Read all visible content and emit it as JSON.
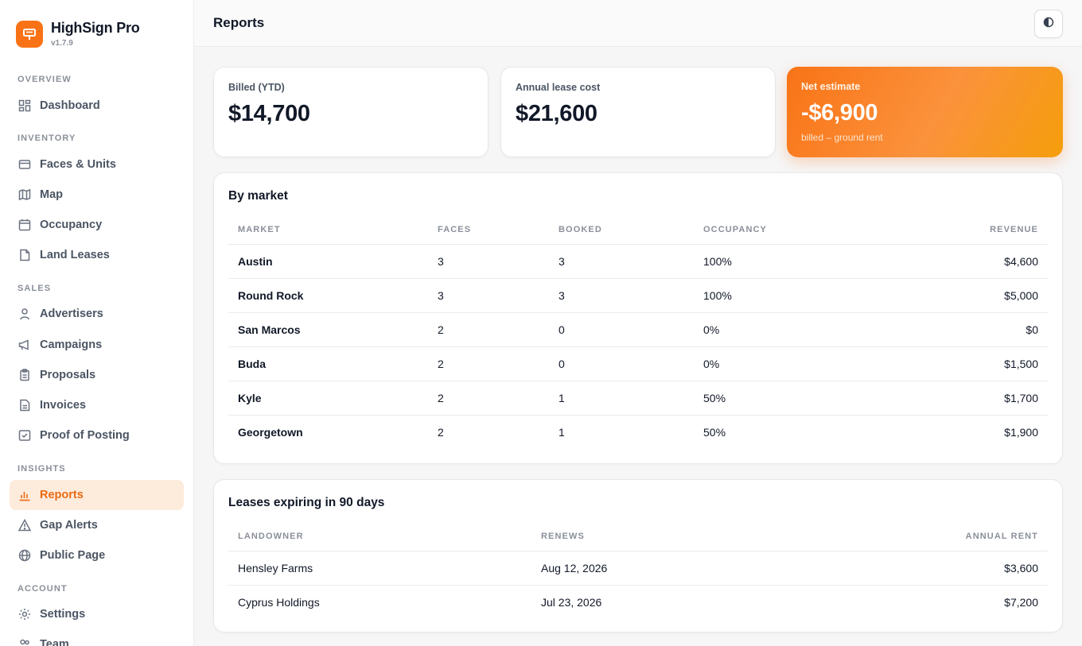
{
  "brand": {
    "name": "HighSign Pro",
    "version": "v1.7.9"
  },
  "sidebar": {
    "sections": [
      {
        "label": "OVERVIEW"
      },
      {
        "label": "INVENTORY"
      },
      {
        "label": "SALES"
      },
      {
        "label": "INSIGHTS"
      },
      {
        "label": "ACCOUNT"
      }
    ],
    "items": [
      {
        "label": "Dashboard",
        "icon": "dashboard-icon"
      },
      {
        "label": "Faces & Units",
        "icon": "faces-icon"
      },
      {
        "label": "Map",
        "icon": "map-icon"
      },
      {
        "label": "Occupancy",
        "icon": "calendar-icon"
      },
      {
        "label": "Land Leases",
        "icon": "document-icon"
      },
      {
        "label": "Advertisers",
        "icon": "person-icon"
      },
      {
        "label": "Campaigns",
        "icon": "megaphone-icon"
      },
      {
        "label": "Proposals",
        "icon": "clipboard-icon"
      },
      {
        "label": "Invoices",
        "icon": "invoice-icon"
      },
      {
        "label": "Proof of Posting",
        "icon": "check-square-icon"
      },
      {
        "label": "Reports",
        "icon": "bar-chart-icon",
        "active": true
      },
      {
        "label": "Gap Alerts",
        "icon": "warning-icon"
      },
      {
        "label": "Public Page",
        "icon": "globe-icon"
      },
      {
        "label": "Settings",
        "icon": "gear-icon"
      },
      {
        "label": "Team",
        "icon": "team-icon"
      }
    ]
  },
  "header": {
    "title": "Reports",
    "theme_toggle_icon": "contrast-icon"
  },
  "stats": {
    "billed": {
      "label": "Billed (YTD)",
      "value": "$14,700"
    },
    "lease": {
      "label": "Annual lease cost",
      "value": "$21,600"
    },
    "net": {
      "label": "Net estimate",
      "value": "-$6,900",
      "sub": "billed – ground rent"
    }
  },
  "by_market": {
    "title": "By market",
    "columns": [
      "MARKET",
      "FACES",
      "BOOKED",
      "OCCUPANCY",
      "REVENUE"
    ],
    "rows": [
      [
        "Austin",
        "3",
        "3",
        "100%",
        "$4,600"
      ],
      [
        "Round Rock",
        "3",
        "3",
        "100%",
        "$5,000"
      ],
      [
        "San Marcos",
        "2",
        "0",
        "0%",
        "$0"
      ],
      [
        "Buda",
        "2",
        "0",
        "0%",
        "$1,500"
      ],
      [
        "Kyle",
        "2",
        "1",
        "50%",
        "$1,700"
      ],
      [
        "Georgetown",
        "2",
        "1",
        "50%",
        "$1,900"
      ]
    ]
  },
  "leases": {
    "title": "Leases expiring in 90 days",
    "columns": [
      "LANDOWNER",
      "RENEWS",
      "ANNUAL RENT"
    ],
    "rows": [
      [
        "Hensley Farms",
        "Aug 12, 2026",
        "$3,600"
      ],
      [
        "Cyprus Holdings",
        "Jul 23, 2026",
        "$7,200"
      ]
    ]
  },
  "colors": {
    "accent": "#f97316",
    "active_bg": "#fdebdc"
  }
}
